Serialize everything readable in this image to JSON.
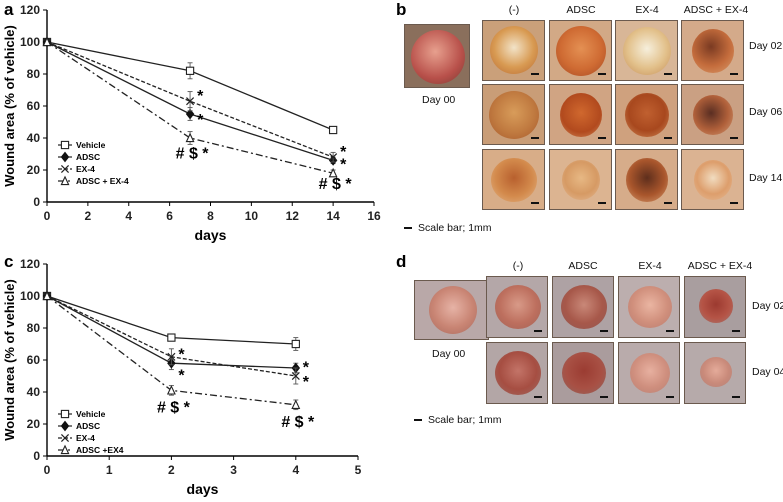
{
  "panel_letters": {
    "a": "a",
    "b": "b",
    "c": "c",
    "d": "d"
  },
  "chart_data": [
    {
      "panel": "a",
      "type": "line",
      "title": "",
      "xlabel": "days",
      "ylabel": "Wound area (% of vehicle)",
      "xlim": [
        0,
        16
      ],
      "ylim": [
        0,
        120
      ],
      "xticks": [
        0,
        2,
        4,
        6,
        8,
        10,
        12,
        14,
        16
      ],
      "yticks": [
        0,
        20,
        40,
        60,
        80,
        100,
        120
      ],
      "x": [
        0,
        7,
        14
      ],
      "series": [
        {
          "name": "Vehicle",
          "style": "solid",
          "marker": "open-square",
          "values": [
            100,
            82,
            45
          ],
          "errors": [
            0,
            5,
            1.5
          ]
        },
        {
          "name": "ADSC",
          "style": "solid",
          "marker": "filled-diamond",
          "values": [
            100,
            55,
            26
          ],
          "errors": [
            0,
            4,
            2
          ]
        },
        {
          "name": "EX-4",
          "style": "dashed",
          "marker": "x",
          "values": [
            100,
            63,
            28
          ],
          "errors": [
            0,
            6,
            3
          ]
        },
        {
          "name": "ADSC + EX-4",
          "style": "dashdot",
          "marker": "open-triangle",
          "values": [
            100,
            40,
            18
          ],
          "errors": [
            0,
            4,
            2
          ]
        }
      ],
      "annotations": [
        {
          "x": 7,
          "y": 67,
          "text": "*"
        },
        {
          "x": 7,
          "y": 52,
          "text": "*"
        },
        {
          "x": 7,
          "y": 31,
          "text": "# $ *"
        },
        {
          "x": 14,
          "y": 32,
          "text": "*"
        },
        {
          "x": 14,
          "y": 24,
          "text": "*"
        },
        {
          "x": 14,
          "y": 12,
          "text": "# $ *"
        }
      ]
    },
    {
      "panel": "c",
      "type": "line",
      "title": "",
      "xlabel": "days",
      "ylabel": "Wound area (% of vehicle)",
      "xlim": [
        0,
        5
      ],
      "ylim": [
        0,
        120
      ],
      "xticks": [
        0,
        1,
        2,
        3,
        4,
        5
      ],
      "yticks": [
        0,
        20,
        40,
        60,
        80,
        100,
        120
      ],
      "x": [
        0,
        2,
        4
      ],
      "series": [
        {
          "name": "Vehicle",
          "style": "solid",
          "marker": "open-square",
          "values": [
            100,
            74,
            70
          ],
          "errors": [
            0,
            2,
            4
          ]
        },
        {
          "name": "ADSC",
          "style": "solid",
          "marker": "filled-diamond",
          "values": [
            100,
            58,
            55
          ],
          "errors": [
            0,
            4,
            3
          ]
        },
        {
          "name": "EX-4",
          "style": "dashed",
          "marker": "x",
          "values": [
            100,
            62,
            50
          ],
          "errors": [
            0,
            5,
            5
          ]
        },
        {
          "name": "ADSC +EX4",
          "style": "dashdot",
          "marker": "open-triangle",
          "values": [
            100,
            41,
            32
          ],
          "errors": [
            0,
            3,
            3
          ]
        }
      ],
      "annotations": [
        {
          "x": 2,
          "y": 64,
          "text": "*"
        },
        {
          "x": 2,
          "y": 51,
          "text": "*"
        },
        {
          "x": 2,
          "y": 31,
          "text": "# $ *"
        },
        {
          "x": 4,
          "y": 56,
          "text": "*"
        },
        {
          "x": 4,
          "y": 47,
          "text": "*"
        },
        {
          "x": 4,
          "y": 22,
          "text": "# $ *"
        }
      ]
    }
  ],
  "panel_b": {
    "day0_label": "Day 00",
    "columns": [
      "(-)",
      "ADSC",
      "EX-4",
      "ADSC + EX-4"
    ],
    "rows": [
      "Day 02",
      "Day 06",
      "Day 14"
    ],
    "scale_note": "Scale bar; 1mm"
  },
  "panel_d": {
    "day0_label": "Day 00",
    "columns": [
      "(-)",
      "ADSC",
      "EX-4",
      "ADSC + EX-4"
    ],
    "rows": [
      "Day 02",
      "Day 04"
    ],
    "scale_note": "Scale bar; 1mm"
  }
}
